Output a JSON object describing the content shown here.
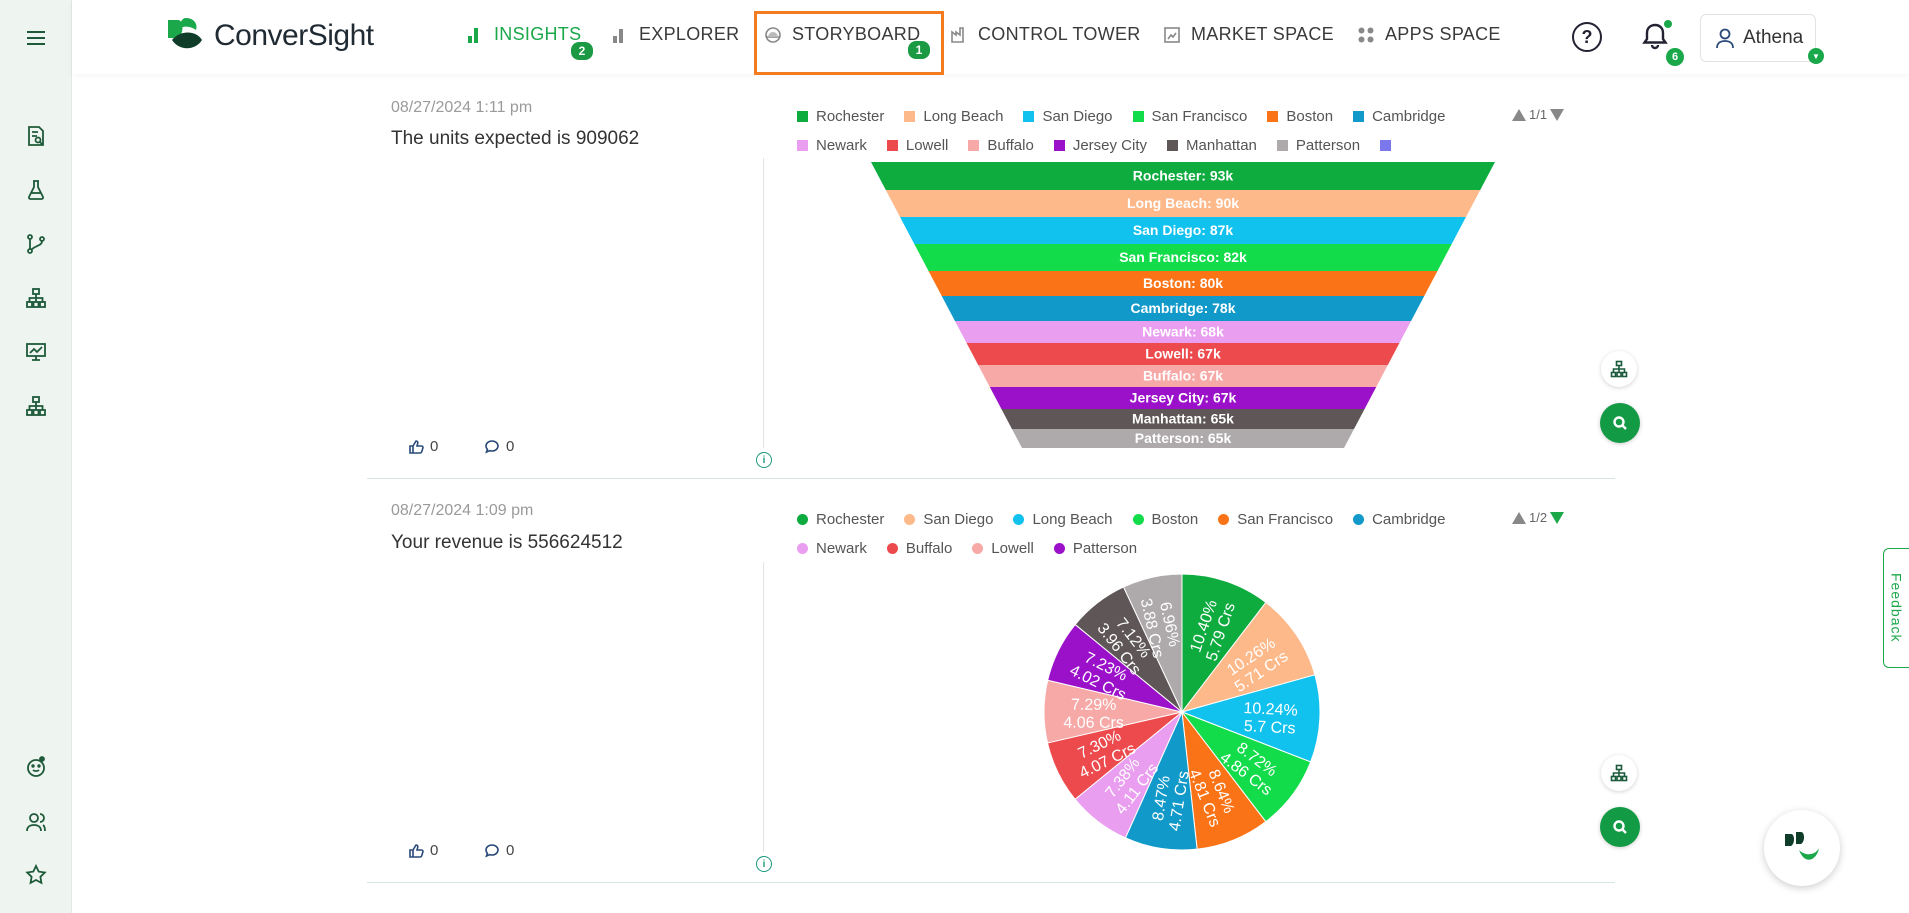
{
  "brand": {
    "name": "ConverSight"
  },
  "nav": {
    "insights": {
      "label": "INSIGHTS",
      "badge": "2"
    },
    "explorer": {
      "label": "EXPLORER"
    },
    "storyboard": {
      "label": "STORYBOARD",
      "badge": "1"
    },
    "control_tower": {
      "label": "CONTROL TOWER"
    },
    "market_space": {
      "label": "MARKET SPACE"
    },
    "apps_space": {
      "label": "APPS SPACE"
    }
  },
  "header": {
    "help": "?",
    "notifications_count": "6",
    "user": "Athena"
  },
  "colors": {
    "accent": "#1aa84a",
    "highlight_box": "#f47c20"
  },
  "cards": [
    {
      "date": "08/27/2024 1:11 pm",
      "title": "The units expected is 909062",
      "likes": "0",
      "comments": "0",
      "pager": "1/1",
      "legend": [
        {
          "name": "Rochester",
          "color": "#0eab3f"
        },
        {
          "name": "Long Beach",
          "color": "#fdb98a"
        },
        {
          "name": "San Diego",
          "color": "#11c1ee"
        },
        {
          "name": "San Francisco",
          "color": "#12dc4a"
        },
        {
          "name": "Boston",
          "color": "#fa7417"
        },
        {
          "name": "Cambridge",
          "color": "#1199c9"
        },
        {
          "name": "Newark",
          "color": "#e99ef0"
        },
        {
          "name": "Lowell",
          "color": "#ec4a4d"
        },
        {
          "name": "Buffalo",
          "color": "#f6a9a7"
        },
        {
          "name": "Jersey City",
          "color": "#9a11c9"
        },
        {
          "name": "Manhattan",
          "color": "#5e5657"
        },
        {
          "name": "Patterson",
          "color": "#aeaaab"
        },
        {
          "name": "",
          "color": "#7b78ec"
        }
      ]
    },
    {
      "date": "08/27/2024 1:09 pm",
      "title": "Your revenue is 556624512",
      "likes": "0",
      "comments": "0",
      "pager": "1/2",
      "legend": [
        {
          "name": "Rochester",
          "color": "#0eab3f"
        },
        {
          "name": "San Diego",
          "color": "#fdb98a"
        },
        {
          "name": "Long Beach",
          "color": "#11c1ee"
        },
        {
          "name": "Boston",
          "color": "#12dc4a"
        },
        {
          "name": "San Francisco",
          "color": "#fa7417"
        },
        {
          "name": "Cambridge",
          "color": "#1199c9"
        },
        {
          "name": "Newark",
          "color": "#e99ef0"
        },
        {
          "name": "Buffalo",
          "color": "#ec4a4d"
        },
        {
          "name": "Lowell",
          "color": "#f6a9a7"
        },
        {
          "name": "Patterson",
          "color": "#9a11c9"
        }
      ]
    }
  ],
  "feedback_label": "Feedback",
  "chart_data": [
    {
      "type": "funnel",
      "categories": [
        "Rochester",
        "Long Beach",
        "San Diego",
        "San Francisco",
        "Boston",
        "Cambridge",
        "Newark",
        "Lowell",
        "Buffalo",
        "Jersey City",
        "Manhattan",
        "Patterson"
      ],
      "labels": [
        "Rochester: 93k",
        "Long Beach: 90k",
        "San Diego: 87k",
        "San Francisco: 82k",
        "Boston: 80k",
        "Cambridge: 78k",
        "Newark: 68k",
        "Lowell: 67k",
        "Buffalo: 67k",
        "Jersey City: 67k",
        "Manhattan: 65k",
        "Patterson: 65k"
      ],
      "values": [
        93,
        90,
        87,
        82,
        80,
        78,
        68,
        67,
        67,
        67,
        65,
        65
      ],
      "colors": [
        "#0eab3f",
        "#fdb98a",
        "#11c1ee",
        "#12dc4a",
        "#fa7417",
        "#1199c9",
        "#e99ef0",
        "#ec4a4d",
        "#f6a9a7",
        "#9a11c9",
        "#5e5657",
        "#aeaaab"
      ]
    },
    {
      "type": "pie",
      "slices": [
        {
          "pct": "10.40%",
          "value": "5.79 Crs",
          "share": 10.4,
          "color": "#0eab3f"
        },
        {
          "pct": "10.26%",
          "value": "5.71 Crs",
          "share": 10.26,
          "color": "#fdb98a"
        },
        {
          "pct": "10.24%",
          "value": "5.7 Crs",
          "share": 10.24,
          "color": "#11c1ee"
        },
        {
          "pct": "8.72%",
          "value": "4.86 Crs",
          "share": 8.72,
          "color": "#12dc4a"
        },
        {
          "pct": "8.64%",
          "value": "4.81 Crs",
          "share": 8.64,
          "color": "#fa7417"
        },
        {
          "pct": "8.47%",
          "value": "4.71 Crs",
          "share": 8.47,
          "color": "#1199c9"
        },
        {
          "pct": "7.38%",
          "value": "4.11 Crs",
          "share": 7.38,
          "color": "#e99ef0"
        },
        {
          "pct": "7.30%",
          "value": "4.07 Crs",
          "share": 7.3,
          "color": "#ec4a4d"
        },
        {
          "pct": "7.29%",
          "value": "4.06 Crs",
          "share": 7.29,
          "color": "#f6a9a7"
        },
        {
          "pct": "7.23%",
          "value": "4.02 Crs",
          "share": 7.23,
          "color": "#9a11c9"
        },
        {
          "pct": "7.12%",
          "value": "3.96 Crs",
          "share": 7.12,
          "color": "#5e5657"
        },
        {
          "pct": "6.96%",
          "value": "3.88 Crs",
          "share": 6.96,
          "color": "#aeaaab"
        }
      ]
    }
  ]
}
